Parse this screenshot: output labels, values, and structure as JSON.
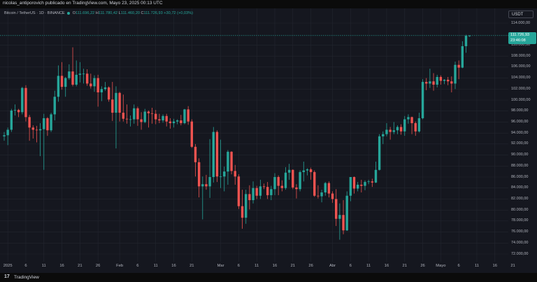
{
  "header": {
    "published": "nicolas_antiporovich publicado en TradingView.com, Mayo 23, 2025 00:13 UTC"
  },
  "symbol": {
    "name": "Bitcoin / TetherUS · 1D · BINANCE",
    "o_label": "O",
    "o": "111.696,22",
    "h_label": "H",
    "h": "111.780,42",
    "l_label": "L",
    "l": "111.460,20",
    "c_label": "C",
    "c": "111.726,93",
    "change": "+30,72 (+0,03%)"
  },
  "currency": "USDT",
  "last_price": {
    "value": "111.726,93",
    "countdown": "23:46:08"
  },
  "footer": {
    "logo": "17",
    "brand": "TradingView"
  },
  "colors": {
    "up": "#26a69a",
    "down": "#ef5350",
    "background": "#15171f",
    "grid": "#23262f",
    "last_price_line": "#26a69a"
  },
  "chart_data": {
    "type": "candlestick",
    "title": "Bitcoin / TetherUS · 1D · BINANCE",
    "ylim": [
      71000,
      115000
    ],
    "grid": true,
    "price_ticks": [
      {
        "v": 114000,
        "t": "114.000,00"
      },
      {
        "v": 110000,
        "t": "110.000,00"
      },
      {
        "v": 108000,
        "t": "108.000,00"
      },
      {
        "v": 106000,
        "t": "106.000,00"
      },
      {
        "v": 104000,
        "t": "104.000,00"
      },
      {
        "v": 102000,
        "t": "102.000,00"
      },
      {
        "v": 100000,
        "t": "100.000,00"
      },
      {
        "v": 98000,
        "t": "98.000,00"
      },
      {
        "v": 96000,
        "t": "96.000,00"
      },
      {
        "v": 94000,
        "t": "94.000,00"
      },
      {
        "v": 92000,
        "t": "92.000,00"
      },
      {
        "v": 90000,
        "t": "90.000,00"
      },
      {
        "v": 88000,
        "t": "88.000,00"
      },
      {
        "v": 86000,
        "t": "86.000,00"
      },
      {
        "v": 84000,
        "t": "84.000,00"
      },
      {
        "v": 82000,
        "t": "82.000,00"
      },
      {
        "v": 80000,
        "t": "80.000,00"
      },
      {
        "v": 78000,
        "t": "78.000,00"
      },
      {
        "v": 76000,
        "t": "76.000,00"
      },
      {
        "v": 74000,
        "t": "74.000,00"
      },
      {
        "v": 72000,
        "t": "72.000,00"
      }
    ],
    "time_ticks": [
      {
        "i": 1,
        "t": "2025"
      },
      {
        "i": 6,
        "t": "6"
      },
      {
        "i": 11,
        "t": "11"
      },
      {
        "i": 16,
        "t": "16"
      },
      {
        "i": 21,
        "t": "21"
      },
      {
        "i": 26,
        "t": "26"
      },
      {
        "i": 32,
        "t": "Feb"
      },
      {
        "i": 37,
        "t": "6"
      },
      {
        "i": 42,
        "t": "11"
      },
      {
        "i": 47,
        "t": "16"
      },
      {
        "i": 52,
        "t": "21"
      },
      {
        "i": 60,
        "t": "Mar"
      },
      {
        "i": 65,
        "t": "6"
      },
      {
        "i": 70,
        "t": "11"
      },
      {
        "i": 75,
        "t": "16"
      },
      {
        "i": 80,
        "t": "21"
      },
      {
        "i": 85,
        "t": "26"
      },
      {
        "i": 91,
        "t": "Abr"
      },
      {
        "i": 96,
        "t": "6"
      },
      {
        "i": 101,
        "t": "11"
      },
      {
        "i": 106,
        "t": "16"
      },
      {
        "i": 111,
        "t": "21"
      },
      {
        "i": 116,
        "t": "26"
      },
      {
        "i": 121,
        "t": "Mayo"
      },
      {
        "i": 126,
        "t": "6"
      },
      {
        "i": 131,
        "t": "11"
      },
      {
        "i": 136,
        "t": "16"
      },
      {
        "i": 141,
        "t": "21"
      }
    ],
    "last_price": 111726.93,
    "candles": [
      [
        93400,
        94200,
        92600,
        93600
      ],
      [
        93600,
        95000,
        91800,
        94600
      ],
      [
        94600,
        98400,
        94200,
        98100
      ],
      [
        98100,
        99200,
        97200,
        98200
      ],
      [
        98200,
        98400,
        96900,
        97800
      ],
      [
        97800,
        102400,
        97400,
        102200
      ],
      [
        102200,
        102700,
        96100,
        96900
      ],
      [
        96900,
        97300,
        92600,
        95000
      ],
      [
        95000,
        95400,
        93000,
        94600
      ],
      [
        94600,
        95300,
        92300,
        94500
      ],
      [
        94500,
        95800,
        89800,
        94700
      ],
      [
        94700,
        97500,
        87300,
        96700
      ],
      [
        96700,
        96900,
        93500,
        94500
      ],
      [
        94500,
        97700,
        94200,
        97400
      ],
      [
        97400,
        101700,
        96300,
        100600
      ],
      [
        100600,
        106300,
        99700,
        104400
      ],
      [
        104400,
        106900,
        101900,
        102400
      ],
      [
        102400,
        104200,
        100600,
        104000
      ],
      [
        104000,
        106500,
        103700,
        105200
      ],
      [
        105200,
        109600,
        102500,
        102800
      ],
      [
        102800,
        107200,
        102500,
        104600
      ],
      [
        104600,
        106900,
        103200,
        104800
      ],
      [
        104800,
        105700,
        103000,
        104800
      ],
      [
        104800,
        105600,
        102600,
        103000
      ],
      [
        103000,
        104800,
        102100,
        102500
      ],
      [
        102500,
        104500,
        101500,
        104000
      ],
      [
        104000,
        104600,
        98800,
        101400
      ],
      [
        101400,
        102500,
        99800,
        102000
      ],
      [
        102000,
        103300,
        101700,
        102300
      ],
      [
        102300,
        102500,
        99700,
        100100
      ],
      [
        100100,
        103300,
        96200,
        97700
      ],
      [
        97700,
        102500,
        91200,
        101300
      ],
      [
        101300,
        101500,
        96100,
        97700
      ],
      [
        97700,
        101000,
        96100,
        96600
      ],
      [
        96600,
        99200,
        95700,
        96500
      ],
      [
        96500,
        97200,
        95200,
        96500
      ],
      [
        96500,
        99200,
        95700,
        98500
      ],
      [
        98500,
        98800,
        95300,
        96500
      ],
      [
        96500,
        97800,
        94600,
        96000
      ],
      [
        96000,
        98400,
        95800,
        97900
      ],
      [
        97900,
        98100,
        95000,
        97600
      ],
      [
        97600,
        98600,
        95700,
        97500
      ],
      [
        97500,
        98200,
        95600,
        96500
      ],
      [
        96500,
        97500,
        95800,
        96300
      ],
      [
        96300,
        97400,
        95900,
        97100
      ],
      [
        97100,
        97500,
        95200,
        96100
      ],
      [
        96100,
        96700,
        94800,
        95800
      ],
      [
        95800,
        96600,
        95000,
        96100
      ],
      [
        96100,
        96500,
        95600,
        96300
      ],
      [
        96300,
        97300,
        95400,
        95800
      ],
      [
        95800,
        98400,
        95600,
        98300
      ],
      [
        98300,
        98900,
        95500,
        96100
      ],
      [
        96100,
        96500,
        91300,
        91500
      ],
      [
        91500,
        92000,
        86100,
        88700
      ],
      [
        88700,
        89400,
        82300,
        84300
      ],
      [
        84300,
        86100,
        78300,
        84700
      ],
      [
        84700,
        86400,
        83700,
        84300
      ],
      [
        84300,
        92900,
        82200,
        86000
      ],
      [
        86000,
        95100,
        85000,
        94200
      ],
      [
        94200,
        94500,
        85100,
        86100
      ],
      [
        86100,
        92800,
        84000,
        86100
      ],
      [
        86100,
        87900,
        83400,
        87000
      ],
      [
        87000,
        90900,
        84600,
        90600
      ],
      [
        90600,
        90700,
        86500,
        87100
      ],
      [
        87100,
        88200,
        84600,
        86100
      ],
      [
        86100,
        86500,
        80200,
        80700
      ],
      [
        80700,
        83700,
        76600,
        78600
      ],
      [
        78600,
        83700,
        77500,
        82900
      ],
      [
        82900,
        84500,
        80100,
        81800
      ],
      [
        81800,
        85200,
        81200,
        84000
      ],
      [
        84000,
        84400,
        82000,
        82600
      ],
      [
        82600,
        85500,
        82000,
        84300
      ],
      [
        84300,
        84800,
        83800,
        84200
      ],
      [
        84200,
        85100,
        82000,
        82700
      ],
      [
        82700,
        84400,
        81800,
        83800
      ],
      [
        83800,
        86700,
        82700,
        86000
      ],
      [
        86000,
        86300,
        82700,
        84400
      ],
      [
        84400,
        85400,
        83400,
        84000
      ],
      [
        84000,
        87800,
        83700,
        86800
      ],
      [
        86800,
        88400,
        85500,
        87300
      ],
      [
        87300,
        87400,
        83800,
        84100
      ],
      [
        84100,
        84700,
        82100,
        83800
      ],
      [
        83800,
        87200,
        83400,
        86900
      ],
      [
        86900,
        88800,
        85200,
        87200
      ],
      [
        87200,
        87600,
        86300,
        87400
      ],
      [
        87400,
        87700,
        85500,
        86900
      ],
      [
        86900,
        87200,
        82400,
        82600
      ],
      [
        82600,
        84500,
        82100,
        82500
      ],
      [
        82500,
        83700,
        81400,
        83200
      ],
      [
        83200,
        85100,
        82600,
        84900
      ],
      [
        84900,
        85200,
        82300,
        83000
      ],
      [
        83000,
        83400,
        81300,
        82000
      ],
      [
        82000,
        83800,
        77100,
        78400
      ],
      [
        78400,
        81200,
        74600,
        79100
      ],
      [
        79100,
        81800,
        75600,
        76300
      ],
      [
        76300,
        83400,
        76200,
        82600
      ],
      [
        82600,
        86000,
        81600,
        86000
      ],
      [
        86000,
        86100,
        83000,
        83900
      ],
      [
        83900,
        85100,
        83400,
        84600
      ],
      [
        84600,
        85500,
        83200,
        84400
      ],
      [
        84400,
        85400,
        83600,
        85100
      ],
      [
        85100,
        85500,
        84700,
        85200
      ],
      [
        85200,
        85700,
        84200,
        85000
      ],
      [
        85000,
        88800,
        84900,
        87300
      ],
      [
        87300,
        93800,
        87200,
        93400
      ],
      [
        93400,
        94300,
        92000,
        93800
      ],
      [
        93800,
        95800,
        93400,
        94600
      ],
      [
        94600,
        95100,
        92800,
        94200
      ],
      [
        94200,
        96000,
        93800,
        94500
      ],
      [
        94500,
        95400,
        93800,
        95100
      ],
      [
        95100,
        95600,
        93700,
        94300
      ],
      [
        94300,
        97100,
        93500,
        96500
      ],
      [
        96500,
        97400,
        95700,
        96900
      ],
      [
        96900,
        97000,
        93800,
        95800
      ],
      [
        95800,
        96100,
        93500,
        94300
      ],
      [
        94300,
        97700,
        94100,
        96700
      ],
      [
        96700,
        103800,
        96500,
        103300
      ],
      [
        103300,
        104000,
        101800,
        103000
      ],
      [
        103000,
        105700,
        102200,
        103400
      ],
      [
        103400,
        104900,
        101700,
        102800
      ],
      [
        102800,
        104600,
        102300,
        104200
      ],
      [
        104200,
        104500,
        102800,
        103500
      ],
      [
        103500,
        103800,
        102900,
        103700
      ],
      [
        103700,
        104200,
        102700,
        103400
      ],
      [
        103400,
        104300,
        101400,
        103000
      ],
      [
        103000,
        107000,
        102000,
        106400
      ],
      [
        106400,
        107200,
        103800,
        105900
      ],
      [
        105900,
        110700,
        105800,
        109800
      ],
      [
        109800,
        111900,
        108600,
        111700
      ],
      [
        111700,
        111800,
        111500,
        111727
      ]
    ]
  }
}
